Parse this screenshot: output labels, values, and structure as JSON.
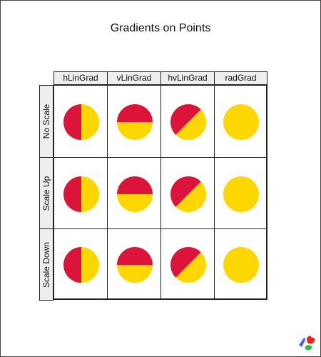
{
  "title": "Gradients on Points",
  "colors": {
    "red": "#dc143c",
    "gold": "#ffd700"
  },
  "chart_data": {
    "type": "table",
    "title": "Gradients on Points",
    "columns": [
      "hLinGrad",
      "vLinGrad",
      "hvLinGrad",
      "radGrad"
    ],
    "rows": [
      "No Scale",
      "Scale Up",
      "Scale Down"
    ],
    "cells": [
      [
        "hLinGrad",
        "vLinGrad",
        "hvLinGrad",
        "radGrad"
      ],
      [
        "hLinGrad",
        "vLinGrad",
        "hvLinGrad",
        "radGrad"
      ],
      [
        "hLinGrad",
        "vLinGrad",
        "hvLinGrad",
        "radGrad"
      ]
    ]
  }
}
